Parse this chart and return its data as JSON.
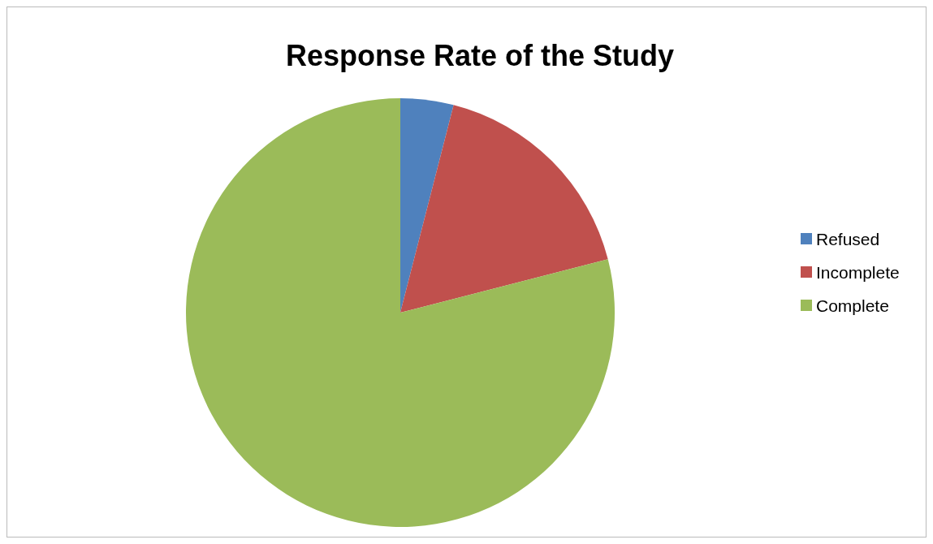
{
  "chart_data": {
    "type": "pie",
    "title": "Response Rate of the Study",
    "categories": [
      "Refused",
      "Incomplete",
      "Complete"
    ],
    "values": [
      4,
      17,
      79
    ],
    "colors": [
      "#4f81bd",
      "#c0504d",
      "#9bbb59"
    ],
    "legend": "right"
  }
}
